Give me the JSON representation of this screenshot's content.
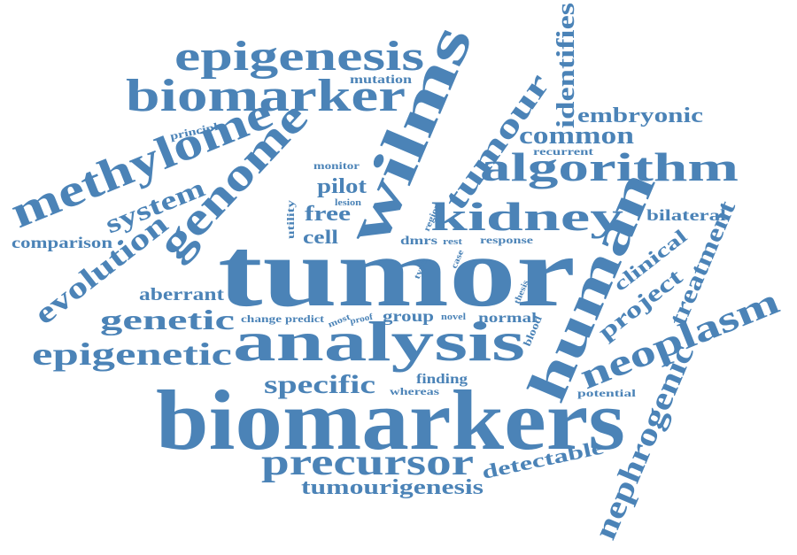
{
  "cloud": {
    "color": "#4b83b7",
    "words": {
      "tumor": "tumor",
      "biomarkers": "biomarkers",
      "analysis": "analysis",
      "wilms": "wilms",
      "human": "human",
      "methylome": "methylome",
      "biomarker": "biomarker",
      "epigenesis": "epigenesis",
      "genome": "genome",
      "algorithm": "algorithm",
      "kidney": "kidney",
      "precursor": "precursor",
      "neoplasm": "neoplasm",
      "nephrogenic": "nephrogenic",
      "epigenetic": "epigenetic",
      "evolution": "evolution",
      "tumour": "tumour",
      "genetic": "genetic",
      "system": "system",
      "identifies": "identifies",
      "treatment": "treatment",
      "project": "project",
      "clinical": "clinical",
      "specific": "specific",
      "common": "common",
      "embryonic": "embryonic",
      "tumourigenesis": "tumourigenesis",
      "detectable": "detectable",
      "comparison": "comparison",
      "aberrant": "aberrant",
      "bilateral": "bilateral",
      "cell": "cell",
      "free": "free",
      "pilot": "pilot",
      "group": "group",
      "normal": "normal",
      "mutation": "mutation",
      "principle": "principle",
      "recurrent": "recurrent",
      "monitor": "monitor",
      "lesion": "lesion",
      "utility": "utility",
      "region": "region",
      "dmrs": "dmrs",
      "rest": "rest",
      "response": "response",
      "case": "case",
      "type": "type",
      "change": "change",
      "predict": "predict",
      "most": "most",
      "proof": "proof",
      "novel": "novel",
      "thesis": "thesis",
      "blood": "blood",
      "finding": "finding",
      "whereas": "whereas",
      "potential": "potential"
    }
  }
}
